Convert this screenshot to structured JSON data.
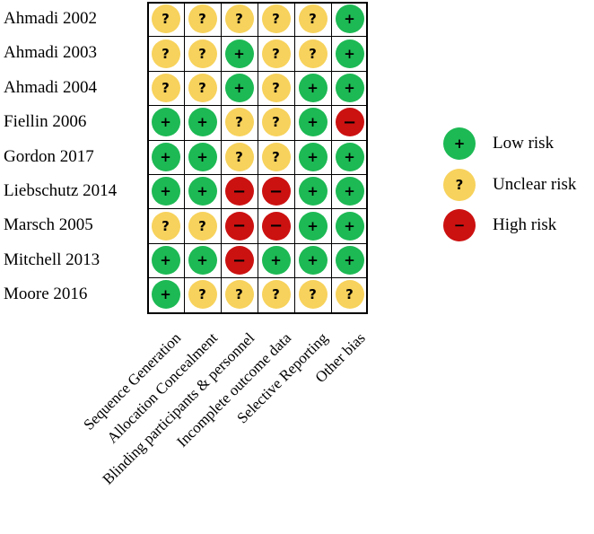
{
  "studies": [
    "Ahmadi 2002",
    "Ahmadi 2003",
    "Ahmadi 2004",
    "Fiellin 2006",
    "Gordon 2017",
    "Liebschutz 2014",
    "Marsch 2005",
    "Mitchell 2013",
    "Moore 2016"
  ],
  "domains": [
    "Sequence Generation",
    "Allocation Concealment",
    "Blinding participants & personnel",
    "Incomplete outcome data",
    "Selective Reporting",
    "Other bias"
  ],
  "symbols": {
    "low": "+",
    "unclear": "?",
    "high": "−"
  },
  "colors": {
    "low": "#1db954",
    "unclear": "#f7d25c",
    "high": "#cc1111"
  },
  "ratings": [
    [
      "unclear",
      "unclear",
      "unclear",
      "unclear",
      "unclear",
      "low"
    ],
    [
      "unclear",
      "unclear",
      "low",
      "unclear",
      "unclear",
      "low"
    ],
    [
      "unclear",
      "unclear",
      "low",
      "unclear",
      "low",
      "low"
    ],
    [
      "low",
      "low",
      "unclear",
      "unclear",
      "low",
      "high"
    ],
    [
      "low",
      "low",
      "unclear",
      "unclear",
      "low",
      "low"
    ],
    [
      "low",
      "low",
      "high",
      "high",
      "low",
      "low"
    ],
    [
      "unclear",
      "unclear",
      "high",
      "high",
      "low",
      "low"
    ],
    [
      "low",
      "low",
      "high",
      "low",
      "low",
      "low"
    ],
    [
      "low",
      "unclear",
      "unclear",
      "unclear",
      "unclear",
      "unclear"
    ]
  ],
  "legend": [
    {
      "key": "low",
      "label": "Low risk"
    },
    {
      "key": "unclear",
      "label": "Unclear risk"
    },
    {
      "key": "high",
      "label": "High risk"
    }
  ]
}
